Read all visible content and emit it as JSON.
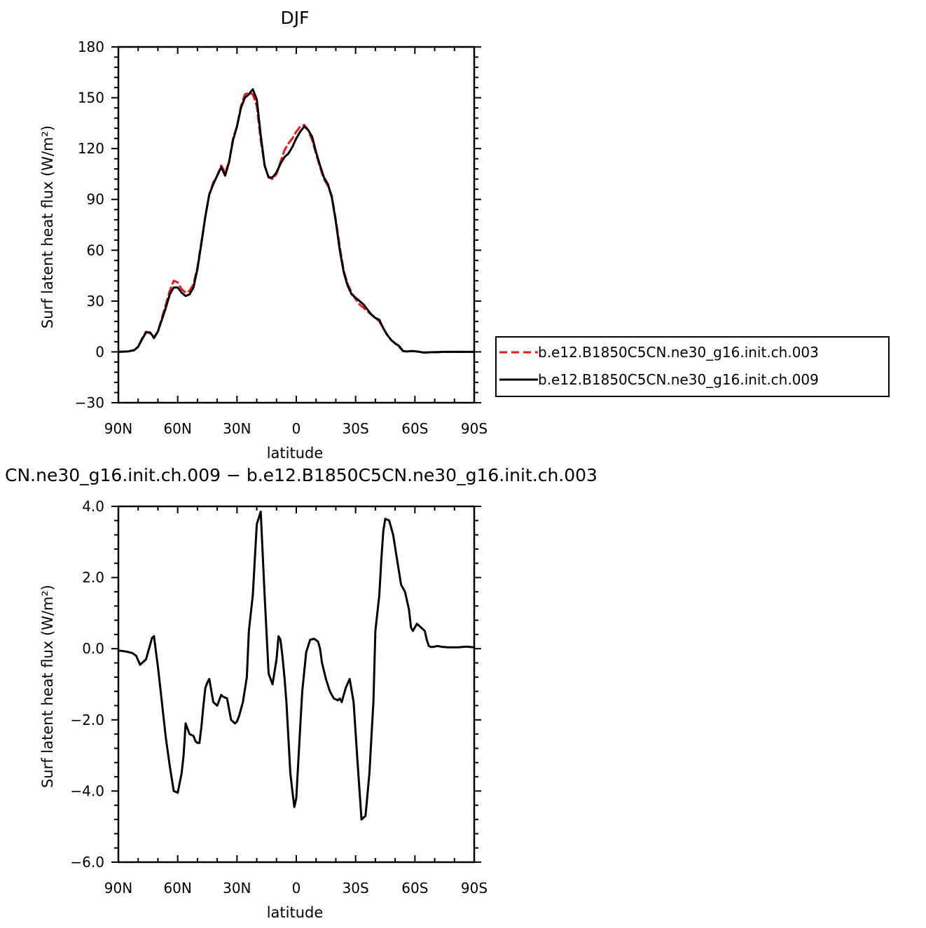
{
  "chart_data": [
    {
      "type": "line",
      "title": "DJF",
      "xlabel": "latitude",
      "ylabel": "Surf latent heat flux (W/m²)",
      "xlim": [
        90,
        -90
      ],
      "ylim": [
        -30,
        180
      ],
      "x_ticks": [
        90,
        60,
        30,
        0,
        -30,
        -60,
        -90
      ],
      "x_tick_labels": [
        "90N",
        "60N",
        "30N",
        "0",
        "30S",
        "60S",
        "90S"
      ],
      "y_ticks": [
        -30,
        0,
        30,
        60,
        90,
        120,
        150,
        180
      ],
      "y_tick_labels": [
        "−30",
        "0",
        "30",
        "60",
        "90",
        "120",
        "150",
        "180"
      ],
      "legend_position": "right",
      "series": [
        {
          "name": "b.e12.B1850C5CN.ne30_g16.init.ch.003",
          "color": "#e41a1c",
          "dash": "dashed",
          "x": [
            90,
            85,
            82,
            80,
            78,
            76,
            74,
            72,
            70,
            68,
            66,
            64,
            62,
            60,
            58,
            56,
            54,
            52,
            50,
            48,
            46,
            44,
            42,
            40,
            38,
            36,
            34,
            32,
            30,
            28,
            26,
            24,
            22,
            20,
            18,
            16,
            14,
            12,
            10,
            8,
            6,
            4,
            2,
            0,
            -2,
            -4,
            -6,
            -8,
            -10,
            -12,
            -14,
            -16,
            -18,
            -20,
            -22,
            -24,
            -26,
            -28,
            -30,
            -32,
            -34,
            -36,
            -38,
            -40,
            -42,
            -44,
            -46,
            -48,
            -50,
            -52,
            -54,
            -56,
            -58,
            -60,
            -62,
            -64,
            -66,
            -68,
            -70,
            -72,
            -74,
            -76,
            -78,
            -80,
            -82,
            -84,
            -86,
            -88,
            -90
          ],
          "y": [
            0,
            0.3,
            1,
            3,
            8,
            12,
            11,
            8,
            12,
            20,
            28,
            36,
            42,
            41,
            37,
            35,
            36,
            40,
            50,
            65,
            80,
            93,
            100,
            104,
            110,
            106,
            112,
            126,
            133,
            145,
            152,
            153,
            152,
            145,
            125,
            110,
            103,
            102,
            105,
            112,
            119,
            123,
            126,
            130,
            133,
            134,
            131,
            125,
            117,
            109,
            102,
            98,
            92,
            78,
            62,
            48,
            40,
            35,
            31,
            28,
            26,
            24,
            22,
            20,
            18,
            14,
            10,
            7,
            5,
            3,
            0.5,
            0.2,
            0.5,
            0.4,
            0.1,
            -0.3,
            -0.3,
            -0.2,
            -0.2,
            -0.1,
            0,
            0,
            0,
            0,
            0,
            0,
            0,
            0,
            0
          ]
        },
        {
          "name": "b.e12.B1850C5CN.ne30_g16.init.ch.009",
          "color": "#000000",
          "dash": "solid",
          "x": [
            90,
            85,
            82,
            80,
            78,
            76,
            74,
            72,
            70,
            68,
            66,
            64,
            62,
            60,
            58,
            56,
            54,
            52,
            50,
            48,
            46,
            44,
            42,
            40,
            38,
            36,
            34,
            32,
            30,
            28,
            26,
            24,
            22,
            20,
            18,
            16,
            14,
            12,
            10,
            8,
            6,
            4,
            2,
            0,
            -2,
            -4,
            -6,
            -8,
            -10,
            -12,
            -14,
            -16,
            -18,
            -20,
            -22,
            -24,
            -26,
            -28,
            -30,
            -32,
            -34,
            -36,
            -38,
            -40,
            -42,
            -44,
            -46,
            -48,
            -50,
            -52,
            -54,
            -56,
            -58,
            -60,
            -62,
            -64,
            -66,
            -68,
            -70,
            -72,
            -74,
            -76,
            -78,
            -80,
            -82,
            -84,
            -86,
            -88,
            -90
          ],
          "y": [
            0,
            0.3,
            1,
            3,
            7.5,
            11.5,
            11.5,
            8.5,
            12,
            19,
            26,
            34,
            38,
            38,
            35,
            33,
            34,
            38,
            49,
            64,
            80,
            93,
            99,
            104,
            109,
            104,
            112,
            125,
            133,
            144,
            150,
            152,
            155,
            149,
            128,
            110,
            103,
            103,
            106,
            111,
            115,
            117,
            121,
            126,
            130,
            133,
            131,
            127,
            118,
            110,
            103,
            99,
            91,
            77,
            60,
            47,
            39,
            34,
            32,
            30,
            28,
            25,
            22,
            20,
            19,
            14,
            10,
            7,
            5,
            3.5,
            0.5,
            0.2,
            0.5,
            0.4,
            0.1,
            -0.3,
            -0.3,
            -0.2,
            -0.2,
            -0.1,
            0,
            0,
            0,
            0,
            0,
            0,
            0,
            0,
            0
          ]
        }
      ]
    },
    {
      "type": "line",
      "title": "CN.ne30_g16.init.ch.009 − b.e12.B1850C5CN.ne30_g16.init.ch.003",
      "xlabel": "latitude",
      "ylabel": "Surf latent heat flux (W/m²)",
      "xlim": [
        90,
        -90
      ],
      "ylim": [
        -6,
        4
      ],
      "x_ticks": [
        90,
        60,
        30,
        0,
        -30,
        -60,
        -90
      ],
      "x_tick_labels": [
        "90N",
        "60N",
        "30N",
        "0",
        "30S",
        "60S",
        "90S"
      ],
      "y_ticks": [
        -6,
        -4,
        -2,
        0,
        2,
        4
      ],
      "y_tick_labels": [
        "−6.0",
        "−4.0",
        "−2.0",
        "0.0",
        "2.0",
        "4.0"
      ],
      "series": [
        {
          "color": "#000000",
          "dash": "solid",
          "x": [
            90,
            86,
            83,
            81,
            79,
            77,
            76,
            75,
            73,
            72,
            70,
            68,
            66,
            64,
            62,
            60,
            58,
            57,
            56,
            54,
            52,
            51,
            50,
            49,
            48,
            47,
            46,
            45,
            44,
            42,
            40,
            38,
            37,
            35,
            33,
            31,
            30,
            29,
            27,
            25,
            24,
            22,
            20,
            18,
            16,
            14,
            12,
            10,
            9,
            8,
            7,
            6,
            5,
            3,
            2,
            1,
            0,
            -2,
            -3,
            -5,
            -7,
            -9,
            -11,
            -12,
            -13,
            -15,
            -17,
            -19,
            -21,
            -22,
            -23,
            -25,
            -27,
            -29,
            -31,
            -33,
            -35,
            -37,
            -38,
            -39,
            -40,
            -42,
            -43,
            -44,
            -45,
            -47,
            -49,
            -51,
            -53,
            -55,
            -57,
            -58,
            -59,
            -61,
            -63,
            -65,
            -66,
            -67,
            -68,
            -69,
            -70,
            -71,
            -72,
            -73,
            -74,
            -75,
            -76,
            -77,
            -78,
            -79,
            -80,
            -82,
            -84,
            -86,
            -88,
            -90
          ],
          "y": [
            -0.05,
            -0.08,
            -0.12,
            -0.2,
            -0.45,
            -0.35,
            -0.3,
            -0.1,
            0.3,
            0.35,
            -0.5,
            -1.5,
            -2.5,
            -3.3,
            -4,
            -4.05,
            -3.5,
            -3,
            -2.1,
            -2.4,
            -2.45,
            -2.6,
            -2.65,
            -2.65,
            -2.2,
            -1.6,
            -1.1,
            -0.95,
            -0.85,
            -1.5,
            -1.6,
            -1.3,
            -1.35,
            -1.4,
            -2,
            -2.1,
            -2.05,
            -1.9,
            -1.5,
            -0.8,
            0.5,
            1.5,
            3.5,
            3.85,
            1.5,
            -0.7,
            -1,
            -0.3,
            0.35,
            0.25,
            -0.2,
            -0.8,
            -1.5,
            -3.5,
            -4,
            -4.45,
            -4.2,
            -2.2,
            -1.2,
            -0.1,
            0.25,
            0.28,
            0.2,
            0,
            -0.4,
            -0.85,
            -1.2,
            -1.4,
            -1.45,
            -1.4,
            -1.5,
            -1.1,
            -0.85,
            -1.5,
            -3.2,
            -4.8,
            -4.7,
            -3.5,
            -2.5,
            -1.5,
            0.5,
            1.5,
            2.5,
            3.3,
            3.65,
            3.6,
            3.2,
            2.5,
            1.8,
            1.6,
            1.1,
            0.6,
            0.5,
            0.7,
            0.6,
            0.5,
            0.25,
            0.08,
            0.05,
            0.05,
            0.06,
            0.07,
            0.07,
            0.06,
            0.05,
            0.05,
            0.04,
            0.04,
            0.04,
            0.04,
            0.04,
            0.04,
            0.05,
            0.06,
            0.05,
            0.04
          ]
        }
      ]
    }
  ]
}
